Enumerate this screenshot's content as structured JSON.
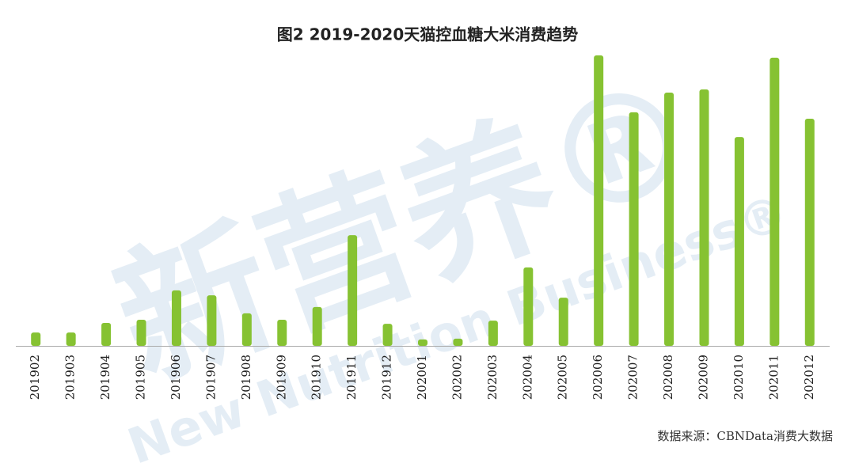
{
  "chart_data": {
    "type": "bar",
    "title": "图2 2019-2020天猫控血糖大米消费趋势",
    "source": "数据来源：CBNData消费大数据",
    "watermark": "新营养®",
    "watermark_en": "New Nutrition Business®",
    "categories": [
      "201902",
      "201903",
      "201904",
      "201905",
      "201906",
      "201907",
      "201908",
      "201909",
      "201910",
      "201911",
      "201912",
      "202001",
      "202002",
      "202003",
      "202004",
      "202005",
      "202006",
      "202007",
      "202008",
      "202009",
      "202010",
      "202011",
      "202012"
    ],
    "values": [
      4.6,
      4.6,
      7.9,
      9.0,
      19.1,
      17.4,
      11.2,
      9.0,
      13.4,
      38.1,
      7.6,
      2.2,
      2.5,
      8.7,
      27.0,
      16.6,
      100,
      80.4,
      87.2,
      88.3,
      71.9,
      99.2,
      78.2
    ],
    "color": "#86c232",
    "ylim": [
      0,
      100
    ]
  }
}
